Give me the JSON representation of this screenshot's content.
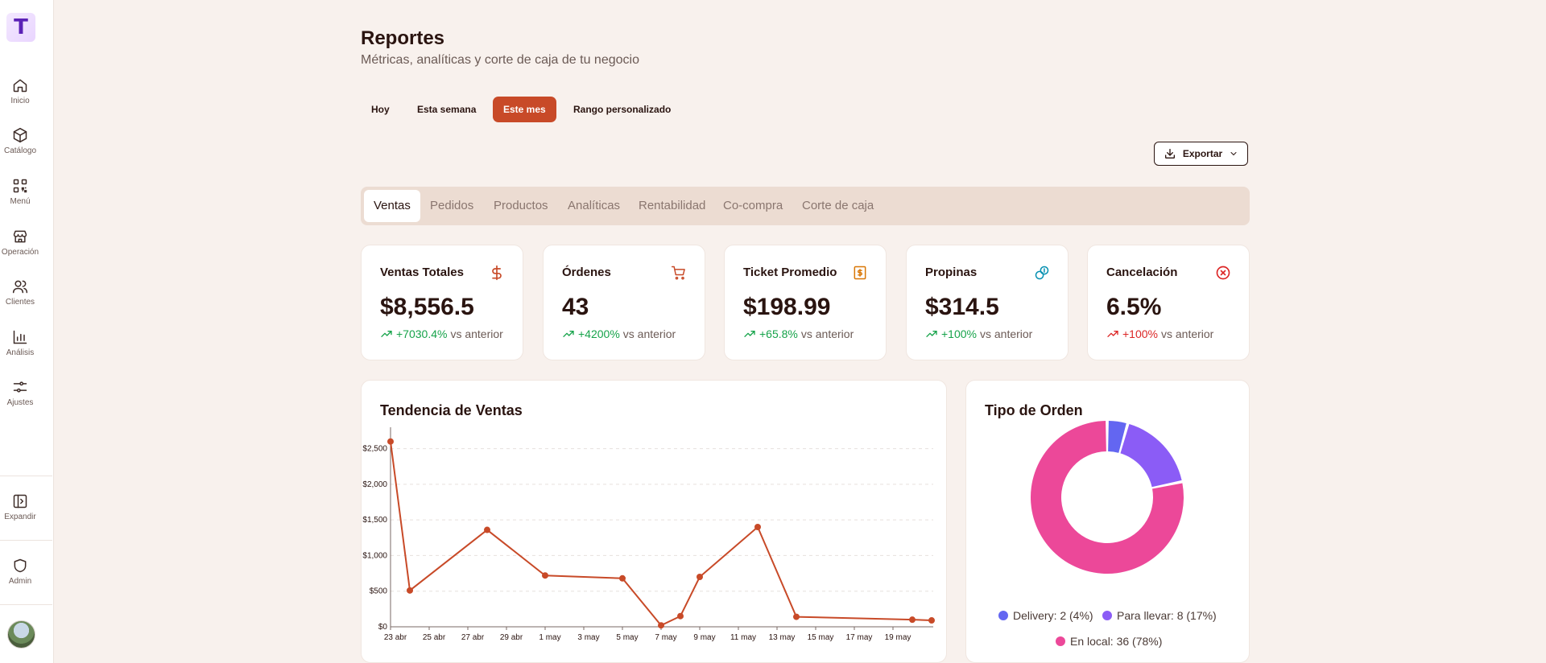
{
  "sidebar": {
    "logo": "T",
    "items": [
      {
        "label": "Inicio",
        "icon": "home-icon"
      },
      {
        "label": "Catálogo",
        "icon": "package-icon"
      },
      {
        "label": "Menú",
        "icon": "qr-code-icon"
      },
      {
        "label": "Operación",
        "icon": "store-icon"
      },
      {
        "label": "Clientes",
        "icon": "users-icon"
      },
      {
        "label": "Análisis",
        "icon": "bar-chart-icon"
      },
      {
        "label": "Ajustes",
        "icon": "sliders-icon"
      }
    ],
    "expand_label": "Expandir",
    "admin_label": "Admin"
  },
  "header": {
    "title": "Reportes",
    "subtitle": "Métricas, analíticas y corte de caja de tu negocio"
  },
  "periods": [
    "Hoy",
    "Esta semana",
    "Este mes",
    "Rango personalizado"
  ],
  "active_period": "Este mes",
  "export_label": "Exportar",
  "tabs": [
    "Ventas",
    "Pedidos",
    "Productos",
    "Analíticas",
    "Rentabilidad",
    "Co-compra",
    "Corte de caja"
  ],
  "active_tab": "Ventas",
  "kpis": [
    {
      "title": "Ventas Totales",
      "value": "$8,556.5",
      "change": "+7030.4%",
      "vs": "vs anterior",
      "icon": "dollar-icon",
      "color": "#c84a28",
      "status": "up"
    },
    {
      "title": "Órdenes",
      "value": "43",
      "change": "+4200%",
      "vs": "vs anterior",
      "icon": "cart-icon",
      "color": "#c84a28",
      "status": "up"
    },
    {
      "title": "Ticket Promedio",
      "value": "$198.99",
      "change": "+65.8%",
      "vs": "vs anterior",
      "icon": "receipt-icon",
      "color": "#d97706",
      "status": "up"
    },
    {
      "title": "Propinas",
      "value": "$314.5",
      "change": "+100%",
      "vs": "vs anterior",
      "icon": "coins-icon",
      "color": "#0891b2",
      "status": "up"
    },
    {
      "title": "Cancelación",
      "value": "6.5%",
      "change": "+100%",
      "vs": "vs anterior",
      "icon": "x-circle-icon",
      "color": "#dc2626",
      "status": "bad"
    }
  ],
  "colors": {
    "accent": "#c84a28",
    "positive": "#16a34a",
    "negative": "#dc2626"
  },
  "chart_data": [
    {
      "type": "line",
      "title": "Tendencia de Ventas",
      "x_ticks": [
        "23 abr",
        "25 abr",
        "27 abr",
        "29 abr",
        "1 may",
        "3 may",
        "5 may",
        "7 may",
        "9 may",
        "11 may",
        "13 may",
        "15 may",
        "17 may",
        "19 may"
      ],
      "y_ticks": [
        "$0",
        "$500",
        "$1,000",
        "$1,500",
        "$2,000",
        "$2,500"
      ],
      "ylim": [
        0,
        2800
      ],
      "x": [
        "2024-04-23",
        "2024-04-24",
        "2024-04-28",
        "2024-05-01",
        "2024-05-05",
        "2024-05-07",
        "2024-05-08",
        "2024-05-09",
        "2024-05-12",
        "2024-05-14",
        "2024-05-20",
        "2024-05-21"
      ],
      "values": [
        2600,
        510,
        1360,
        720,
        680,
        20,
        150,
        700,
        1400,
        140,
        100,
        90
      ],
      "grid": true,
      "color": "#c84a28"
    },
    {
      "type": "pie",
      "title": "Tipo de Orden",
      "donut": true,
      "slices": [
        {
          "label": "Delivery",
          "count": 2,
          "pct": 4,
          "legend": "Delivery: 2 (4%)",
          "color": "#6366f1"
        },
        {
          "label": "Para llevar",
          "count": 8,
          "pct": 17,
          "legend": "Para llevar: 8 (17%)",
          "color": "#8b5cf6"
        },
        {
          "label": "En local",
          "count": 36,
          "pct": 78,
          "legend": "En local: 36 (78%)",
          "color": "#ec4899"
        }
      ],
      "legend_position": "bottom"
    }
  ]
}
